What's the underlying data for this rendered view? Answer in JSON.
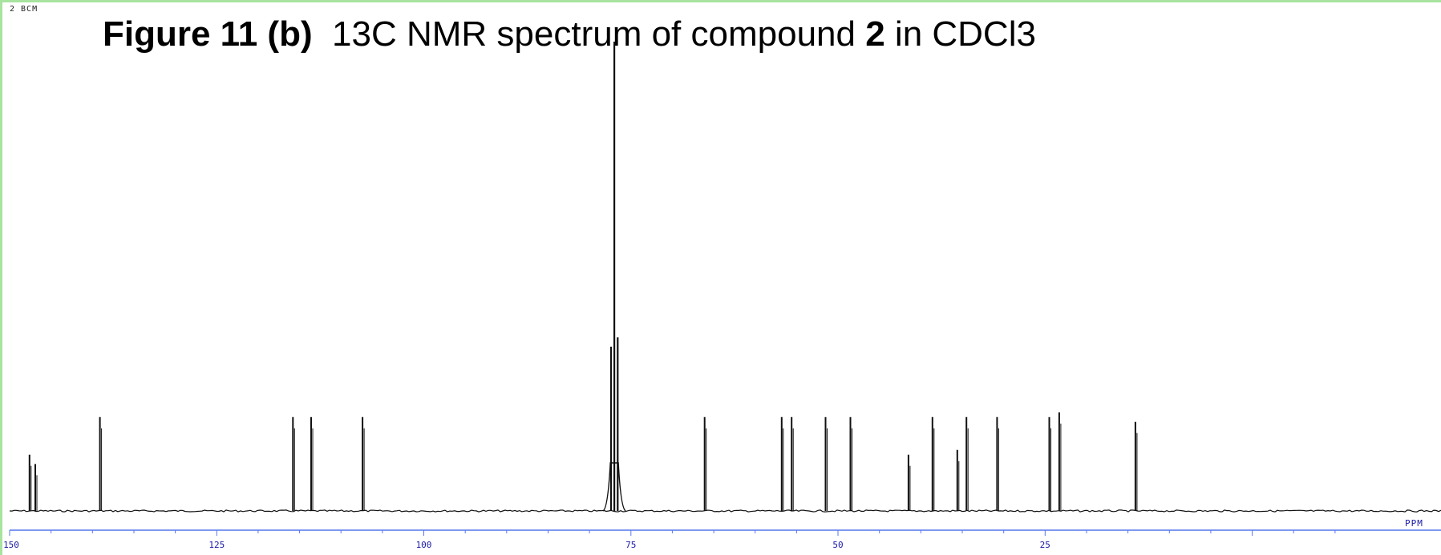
{
  "title": {
    "bold_prefix": "Figure 11 (b)",
    "text_1": "  13C NMR spectrum of compound ",
    "bold_compound": "2",
    "text_2": " in CDCl3"
  },
  "sample_id": "2 BCM",
  "colors": {
    "frame": "#a8e3a0",
    "axis": "#5577ee",
    "axis_labels": "#1a1aa8",
    "trace": "#111111"
  },
  "chart_data": {
    "type": "line",
    "title": "13C NMR spectrum of compound 2 in CDCl3",
    "xlabel": "PPM",
    "ylabel": "",
    "x_reversed": true,
    "xlim": [
      150,
      0
    ],
    "ylim": [
      0,
      1
    ],
    "grid": false,
    "x_ticks": [
      {
        "value": 150,
        "label": "150"
      },
      {
        "value": 125,
        "label": "125"
      },
      {
        "value": 100,
        "label": "100"
      },
      {
        "value": 75,
        "label": "75"
      },
      {
        "value": 50,
        "label": "50"
      },
      {
        "value": 25,
        "label": "25"
      }
    ],
    "minor_tick_step": 5,
    "peaks_ppm": [
      147.6,
      146.9,
      139.1,
      115.8,
      113.6,
      107.4,
      77.4,
      77.0,
      76.6,
      66.1,
      56.8,
      55.6,
      51.5,
      48.5,
      41.5,
      38.6,
      35.6,
      34.5,
      30.8,
      24.5,
      23.3,
      14.1
    ],
    "peak_heights": [
      0.12,
      0.1,
      0.2,
      0.2,
      0.2,
      0.2,
      0.35,
      1.0,
      0.37,
      0.2,
      0.2,
      0.2,
      0.2,
      0.2,
      0.12,
      0.2,
      0.13,
      0.2,
      0.2,
      0.2,
      0.21,
      0.19
    ]
  }
}
